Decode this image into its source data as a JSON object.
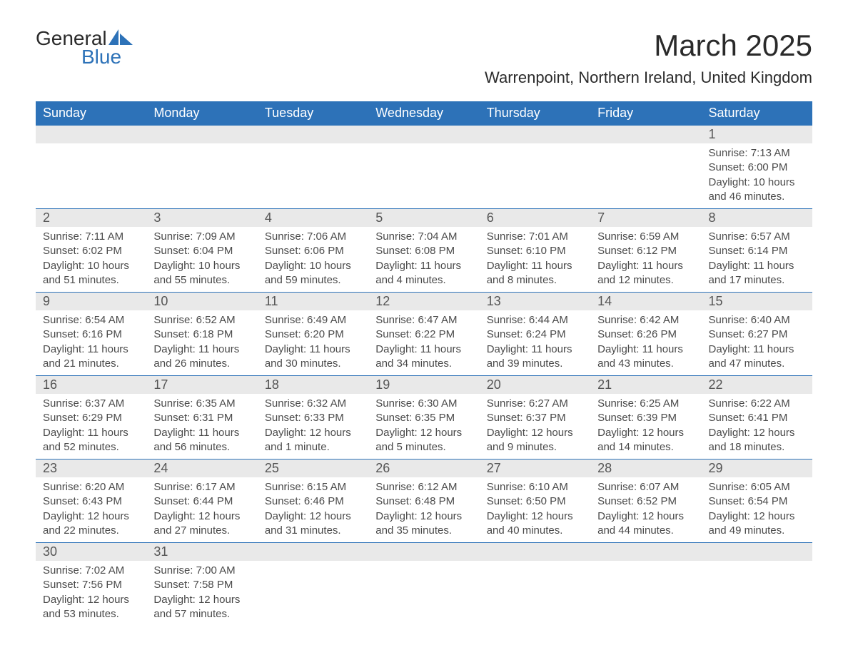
{
  "brand": {
    "name_part1": "General",
    "name_part2": "Blue",
    "color_dark": "#2a2a2a",
    "color_blue": "#2d72b8"
  },
  "header": {
    "month_title": "March 2025",
    "location": "Warrenpoint, Northern Ireland, United Kingdom"
  },
  "styling": {
    "header_bg": "#2d72b8",
    "header_text": "#ffffff",
    "day_number_bg": "#e9e9e9",
    "body_text": "#4a4a4a",
    "border_color": "#2d72b8",
    "page_bg": "#ffffff",
    "title_fontsize": 42,
    "location_fontsize": 22,
    "weekday_fontsize": 18,
    "body_fontsize": 15
  },
  "weekdays": [
    "Sunday",
    "Monday",
    "Tuesday",
    "Wednesday",
    "Thursday",
    "Friday",
    "Saturday"
  ],
  "weeks": [
    [
      null,
      null,
      null,
      null,
      null,
      null,
      {
        "day": "1",
        "sunrise": "Sunrise: 7:13 AM",
        "sunset": "Sunset: 6:00 PM",
        "daylight": "Daylight: 10 hours and 46 minutes."
      }
    ],
    [
      {
        "day": "2",
        "sunrise": "Sunrise: 7:11 AM",
        "sunset": "Sunset: 6:02 PM",
        "daylight": "Daylight: 10 hours and 51 minutes."
      },
      {
        "day": "3",
        "sunrise": "Sunrise: 7:09 AM",
        "sunset": "Sunset: 6:04 PM",
        "daylight": "Daylight: 10 hours and 55 minutes."
      },
      {
        "day": "4",
        "sunrise": "Sunrise: 7:06 AM",
        "sunset": "Sunset: 6:06 PM",
        "daylight": "Daylight: 10 hours and 59 minutes."
      },
      {
        "day": "5",
        "sunrise": "Sunrise: 7:04 AM",
        "sunset": "Sunset: 6:08 PM",
        "daylight": "Daylight: 11 hours and 4 minutes."
      },
      {
        "day": "6",
        "sunrise": "Sunrise: 7:01 AM",
        "sunset": "Sunset: 6:10 PM",
        "daylight": "Daylight: 11 hours and 8 minutes."
      },
      {
        "day": "7",
        "sunrise": "Sunrise: 6:59 AM",
        "sunset": "Sunset: 6:12 PM",
        "daylight": "Daylight: 11 hours and 12 minutes."
      },
      {
        "day": "8",
        "sunrise": "Sunrise: 6:57 AM",
        "sunset": "Sunset: 6:14 PM",
        "daylight": "Daylight: 11 hours and 17 minutes."
      }
    ],
    [
      {
        "day": "9",
        "sunrise": "Sunrise: 6:54 AM",
        "sunset": "Sunset: 6:16 PM",
        "daylight": "Daylight: 11 hours and 21 minutes."
      },
      {
        "day": "10",
        "sunrise": "Sunrise: 6:52 AM",
        "sunset": "Sunset: 6:18 PM",
        "daylight": "Daylight: 11 hours and 26 minutes."
      },
      {
        "day": "11",
        "sunrise": "Sunrise: 6:49 AM",
        "sunset": "Sunset: 6:20 PM",
        "daylight": "Daylight: 11 hours and 30 minutes."
      },
      {
        "day": "12",
        "sunrise": "Sunrise: 6:47 AM",
        "sunset": "Sunset: 6:22 PM",
        "daylight": "Daylight: 11 hours and 34 minutes."
      },
      {
        "day": "13",
        "sunrise": "Sunrise: 6:44 AM",
        "sunset": "Sunset: 6:24 PM",
        "daylight": "Daylight: 11 hours and 39 minutes."
      },
      {
        "day": "14",
        "sunrise": "Sunrise: 6:42 AM",
        "sunset": "Sunset: 6:26 PM",
        "daylight": "Daylight: 11 hours and 43 minutes."
      },
      {
        "day": "15",
        "sunrise": "Sunrise: 6:40 AM",
        "sunset": "Sunset: 6:27 PM",
        "daylight": "Daylight: 11 hours and 47 minutes."
      }
    ],
    [
      {
        "day": "16",
        "sunrise": "Sunrise: 6:37 AM",
        "sunset": "Sunset: 6:29 PM",
        "daylight": "Daylight: 11 hours and 52 minutes."
      },
      {
        "day": "17",
        "sunrise": "Sunrise: 6:35 AM",
        "sunset": "Sunset: 6:31 PM",
        "daylight": "Daylight: 11 hours and 56 minutes."
      },
      {
        "day": "18",
        "sunrise": "Sunrise: 6:32 AM",
        "sunset": "Sunset: 6:33 PM",
        "daylight": "Daylight: 12 hours and 1 minute."
      },
      {
        "day": "19",
        "sunrise": "Sunrise: 6:30 AM",
        "sunset": "Sunset: 6:35 PM",
        "daylight": "Daylight: 12 hours and 5 minutes."
      },
      {
        "day": "20",
        "sunrise": "Sunrise: 6:27 AM",
        "sunset": "Sunset: 6:37 PM",
        "daylight": "Daylight: 12 hours and 9 minutes."
      },
      {
        "day": "21",
        "sunrise": "Sunrise: 6:25 AM",
        "sunset": "Sunset: 6:39 PM",
        "daylight": "Daylight: 12 hours and 14 minutes."
      },
      {
        "day": "22",
        "sunrise": "Sunrise: 6:22 AM",
        "sunset": "Sunset: 6:41 PM",
        "daylight": "Daylight: 12 hours and 18 minutes."
      }
    ],
    [
      {
        "day": "23",
        "sunrise": "Sunrise: 6:20 AM",
        "sunset": "Sunset: 6:43 PM",
        "86daylight": "Daylight: 12 hours and 22 minutes.",
        "daylight": "Daylight: 12 hours and 22 minutes."
      },
      {
        "day": "24",
        "sunrise": "Sunrise: 6:17 AM",
        "sunset": "Sunset: 6:44 PM",
        "daylight": "Daylight: 12 hours and 27 minutes."
      },
      {
        "day": "25",
        "sunrise": "Sunrise: 6:15 AM",
        "sunset": "Sunset: 6:46 PM",
        "daylight": "Daylight: 12 hours and 31 minutes."
      },
      {
        "day": "26",
        "sunrise": "Sunrise: 6:12 AM",
        "sunset": "Sunset: 6:48 PM",
        "daylight": "Daylight: 12 hours and 35 minutes."
      },
      {
        "day": "27",
        "sunrise": "Sunrise: 6:10 AM",
        "sunset": "Sunset: 6:50 PM",
        "daylight": "Daylight: 12 hours and 40 minutes."
      },
      {
        "day": "28",
        "sunrise": "Sunrise: 6:07 AM",
        "sunset": "Sunset: 6:52 PM",
        "daylight": "Daylight: 12 hours and 44 minutes."
      },
      {
        "day": "29",
        "sunrise": "Sunrise: 6:05 AM",
        "sunset": "Sunset: 6:54 PM",
        "daylight": "Daylight: 12 hours and 49 minutes."
      }
    ],
    [
      {
        "day": "30",
        "sunrise": "Sunrise: 7:02 AM",
        "sunset": "Sunset: 7:56 PM",
        "daylight": "Daylight: 12 hours and 53 minutes."
      },
      {
        "day": "31",
        "sunrise": "Sunrise: 7:00 AM",
        "sunset": "Sunset: 7:58 PM",
        "daylight": "Daylight: 12 hours and 57 minutes."
      },
      null,
      null,
      null,
      null,
      null
    ]
  ]
}
